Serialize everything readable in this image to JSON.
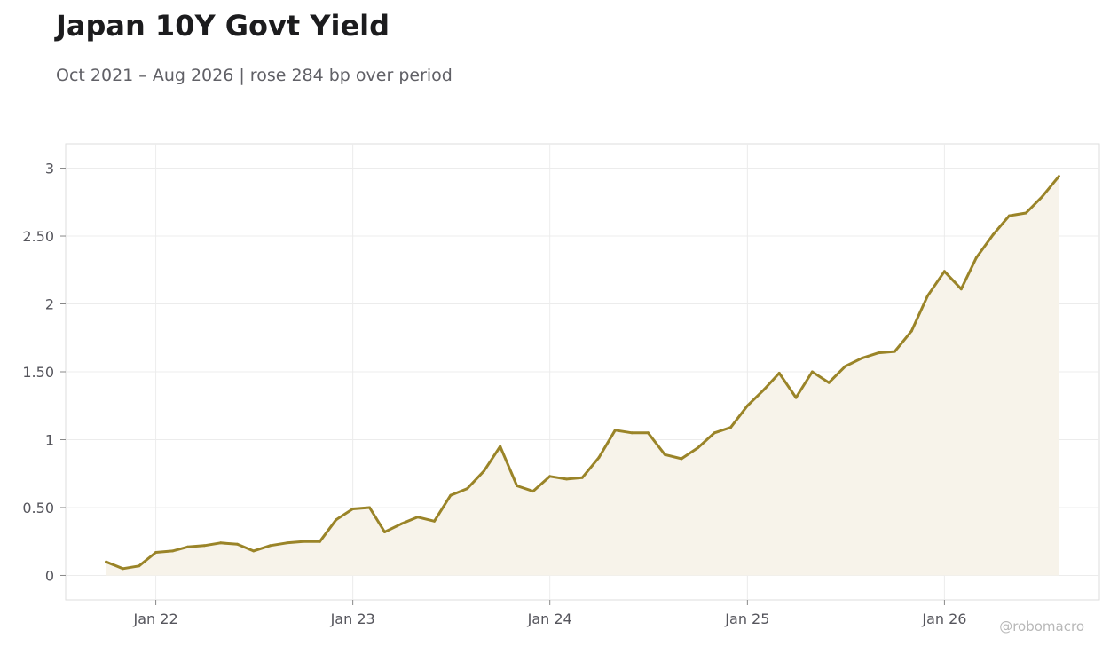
{
  "header": {
    "title": "Japan 10Y Govt Yield",
    "subtitle": "Oct 2021 – Aug 2026 | rose 284 bp over period"
  },
  "watermark": "@robomacro",
  "chart_data": {
    "type": "area",
    "title": "Japan 10Y Govt Yield",
    "subtitle": "Oct 2021 – Aug 2026 | rose 284 bp over period",
    "xlabel": "",
    "ylabel": "",
    "ylim": [
      -0.18,
      3.18
    ],
    "xlim": [
      "2021-07-18",
      "2026-10-15"
    ],
    "yticks": [
      0,
      0.5,
      1,
      1.5,
      2,
      2.5,
      3
    ],
    "ytick_labels": [
      "0",
      "0.50",
      "1",
      "1.50",
      "2",
      "2.50",
      "3"
    ],
    "xticks": [
      "2022-01-01",
      "2023-01-01",
      "2024-01-01",
      "2025-01-01",
      "2026-01-01"
    ],
    "xtick_labels": [
      "Jan 22",
      "Jan 23",
      "Jan 24",
      "Jan 25",
      "Jan 26"
    ],
    "grid": true,
    "line_color": "#9a8428",
    "fill_color": "#f7f3ea",
    "series": [
      {
        "x": [
          "2021-10-01",
          "2021-11-01",
          "2021-12-01",
          "2022-01-01",
          "2022-02-01",
          "2022-03-01",
          "2022-04-01",
          "2022-05-01",
          "2022-06-01",
          "2022-07-01",
          "2022-08-01",
          "2022-09-01",
          "2022-10-01",
          "2022-11-01",
          "2022-12-01",
          "2023-01-01",
          "2023-02-01",
          "2023-03-01",
          "2023-04-01",
          "2023-05-01",
          "2023-06-01",
          "2023-07-01",
          "2023-08-01",
          "2023-09-01",
          "2023-10-01",
          "2023-11-01",
          "2023-12-01",
          "2024-01-01",
          "2024-02-01",
          "2024-03-01",
          "2024-04-01",
          "2024-05-01",
          "2024-06-01",
          "2024-07-01",
          "2024-08-01",
          "2024-09-01",
          "2024-10-01",
          "2024-11-01",
          "2024-12-01",
          "2025-01-01",
          "2025-02-01",
          "2025-03-01",
          "2025-04-01",
          "2025-05-01",
          "2025-06-01",
          "2025-07-01",
          "2025-08-01",
          "2025-09-01",
          "2025-10-01",
          "2025-11-01",
          "2025-12-01",
          "2026-01-01",
          "2026-02-01",
          "2026-03-01",
          "2026-04-01",
          "2026-05-01",
          "2026-06-01",
          "2026-07-01",
          "2026-08-01"
        ],
        "values": [
          0.1,
          0.05,
          0.07,
          0.17,
          0.18,
          0.21,
          0.22,
          0.24,
          0.23,
          0.18,
          0.22,
          0.24,
          0.25,
          0.25,
          0.41,
          0.49,
          0.5,
          0.32,
          0.38,
          0.43,
          0.4,
          0.59,
          0.64,
          0.77,
          0.95,
          0.66,
          0.62,
          0.73,
          0.71,
          0.72,
          0.87,
          1.07,
          1.05,
          1.05,
          0.89,
          0.86,
          0.94,
          1.05,
          1.09,
          1.25,
          1.37,
          1.49,
          1.31,
          1.5,
          1.42,
          1.54,
          1.6,
          1.64,
          1.65,
          1.8,
          2.06,
          2.24,
          2.11,
          2.34,
          2.51,
          2.65,
          2.67,
          2.79,
          2.94
        ]
      }
    ]
  }
}
